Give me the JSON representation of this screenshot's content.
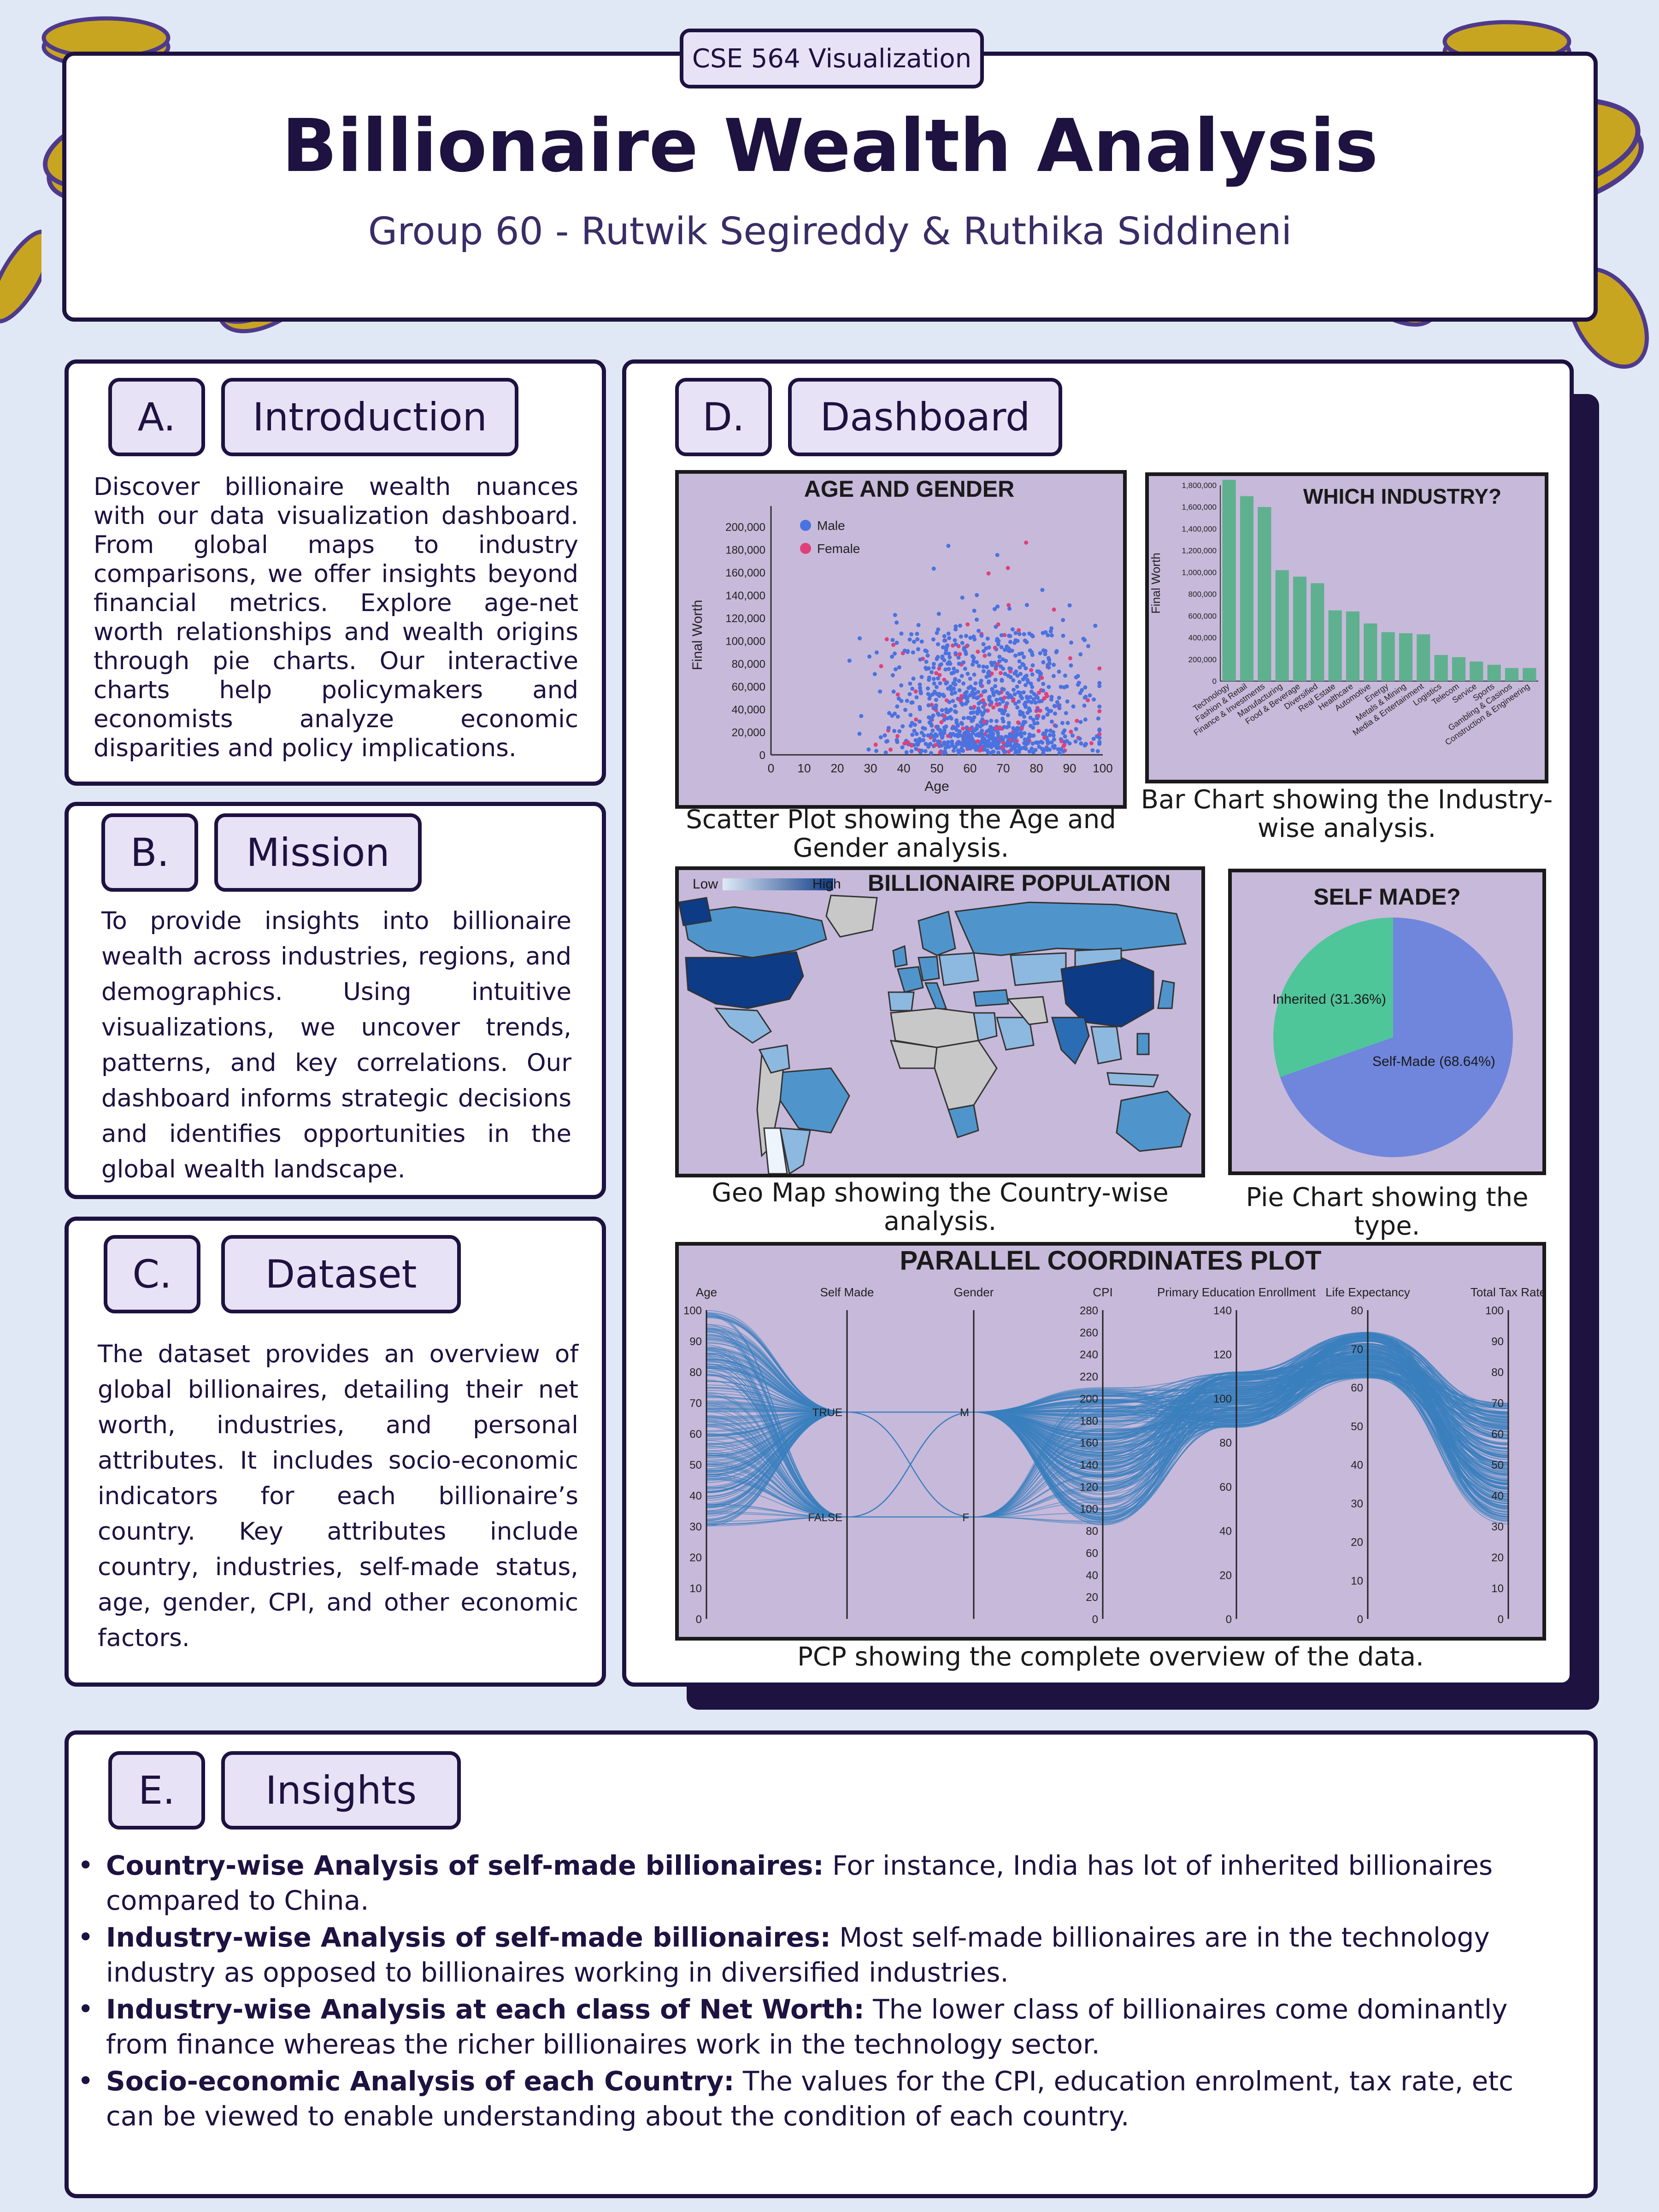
{
  "header": {
    "course": "CSE 564 Visualization",
    "title": "Billionaire Wealth Analysis",
    "subtitle": "Group 60 - Rutwik Segireddy & Ruthika Siddineni"
  },
  "sections": {
    "intro": {
      "letter": "A.",
      "title": "Introduction",
      "text": "Discover billionaire wealth nuances with our data visualization dashboard. From global maps to industry comparisons, we offer insights beyond financial metrics. Explore age-net worth relationships and wealth origins through pie charts. Our interactive charts help policymakers and economists analyze economic disparities and policy implications."
    },
    "mission": {
      "letter": "B.",
      "title": "Mission",
      "text": "To provide insights into billionaire wealth across industries, regions, and demographics. Using intuitive visualizations, we uncover trends, patterns, and key correlations. Our dashboard informs strategic decisions and identifies opportunities in the global wealth landscape."
    },
    "dataset": {
      "letter": "C.",
      "title": "Dataset",
      "text": "The dataset provides an overview of global billionaires, detailing their net worth, industries, and personal attributes. It includes socio-economic indicators for each billionaire’s country. Key attributes include country, industries, self-made status, age, gender, CPI, and other economic factors."
    },
    "dashboard": {
      "letter": "D.",
      "title": "Dashboard"
    },
    "insights": {
      "letter": "E.",
      "title": "Insights",
      "items": [
        {
          "bold": "Country-wise Analysis of self-made billionaires:",
          "text": " For instance, India has lot of inherited billionaires compared to China."
        },
        {
          "bold": "Industry-wise Analysis of self-made billionaires:",
          "text": " Most self-made billionaires are in the technology industry as opposed to billionaires working in diversified industries."
        },
        {
          "bold": "Industry-wise Analysis at each class of Net Worth:",
          "text": " The lower class of billionaires come dominantly from finance whereas the richer billionaires work in the technology sector."
        },
        {
          "bold": "Socio-economic Analysis of each Country:",
          "text": " The values for the CPI, education enrolment, tax rate, etc can be viewed to enable understanding about the condition of each country."
        }
      ]
    }
  },
  "captions": {
    "scatter": "Scatter Plot showing the Age and Gender analysis.",
    "bar": "Bar Chart showing the Industry-wise analysis.",
    "map": "Geo Map showing the Country-wise analysis.",
    "pie": "Pie Chart showing the type.",
    "pcp": "PCP showing the complete overview of the data."
  },
  "colors": {
    "navy": "#1d1240",
    "lavender": "#c7b9da",
    "male": "#4a72e0",
    "female": "#e0407a",
    "bar": "#5fb08f",
    "pie_inherited": "#4fc59a",
    "pie_selfmade": "#6f86dc",
    "pcp_line": "#3b7fbd",
    "coin": "#c8a520"
  },
  "chart_data": [
    {
      "type": "scatter",
      "title": "AGE AND GENDER",
      "xlabel": "Age",
      "ylabel": "Final Worth",
      "xlim": [
        0,
        100
      ],
      "ylim": [
        0,
        210000
      ],
      "xticks": [
        "0",
        "10",
        "20",
        "30",
        "40",
        "50",
        "60",
        "70",
        "80",
        "90",
        "100"
      ],
      "yticks": [
        "0",
        "20,000",
        "40,000",
        "60,000",
        "80,000",
        "100,000",
        "120,000",
        "140,000",
        "160,000",
        "180,000",
        "200,000"
      ],
      "legend": [
        {
          "name": "Male",
          "color": "#4a72e0"
        },
        {
          "name": "Female",
          "color": "#e0407a"
        }
      ],
      "legend_position": "top-left"
    },
    {
      "type": "bar",
      "title": "WHICH INDUSTRY?",
      "ylabel": "Final Worth",
      "ylim": [
        0,
        1800000
      ],
      "yticks": [
        "0",
        "200,000",
        "400,000",
        "600,000",
        "800,000",
        "1,000,000",
        "1,200,000",
        "1,400,000",
        "1,600,000",
        "1,800,000"
      ],
      "categories": [
        "Technology",
        "Fashion & Retail",
        "Finance & Investments",
        "Manufacturing",
        "Food & Beverage",
        "Diversified",
        "Real Estate",
        "Healthcare",
        "Automotive",
        "Energy",
        "Metals & Mining",
        "Media & Entertainment",
        "Logistics",
        "Telecom",
        "Service",
        "Sports",
        "Gambling & Casinos",
        "Construction & Engineering"
      ],
      "values": [
        1850000,
        1700000,
        1600000,
        1020000,
        960000,
        900000,
        650000,
        640000,
        530000,
        450000,
        440000,
        430000,
        240000,
        220000,
        180000,
        150000,
        120000,
        120000
      ]
    },
    {
      "type": "other",
      "title": "BILLIONAIRE POPULATION",
      "legend_low": "Low",
      "legend_high": "High"
    },
    {
      "type": "pie",
      "title": "SELF MADE?",
      "slices": [
        {
          "label": "Self-Made (68.64%)",
          "value": 68.64
        },
        {
          "label": "Inherited (31.36%)",
          "value": 31.36
        }
      ]
    },
    {
      "type": "other",
      "title": "PARALLEL COORDINATES PLOT",
      "axes": [
        {
          "name": "Age",
          "ticks": [
            "0",
            "10",
            "20",
            "30",
            "40",
            "50",
            "60",
            "70",
            "80",
            "90",
            "100"
          ]
        },
        {
          "name": "Self Made",
          "ticks": [
            "TRUE",
            "FALSE"
          ]
        },
        {
          "name": "Gender",
          "ticks": [
            "M",
            "F"
          ]
        },
        {
          "name": "CPI",
          "ticks": [
            "0",
            "20",
            "40",
            "60",
            "80",
            "100",
            "120",
            "140",
            "160",
            "180",
            "200",
            "220",
            "240",
            "260",
            "280"
          ]
        },
        {
          "name": "Primary Education Enrollment",
          "ticks": [
            "0",
            "20",
            "40",
            "60",
            "80",
            "100",
            "120",
            "140"
          ]
        },
        {
          "name": "Life Expectancy",
          "ticks": [
            "0",
            "10",
            "20",
            "30",
            "40",
            "50",
            "60",
            "70",
            "80"
          ]
        },
        {
          "name": "Total Tax Rate",
          "ticks": [
            "0",
            "10",
            "20",
            "30",
            "40",
            "50",
            "60",
            "70",
            "80",
            "90",
            "100"
          ]
        }
      ]
    }
  ]
}
